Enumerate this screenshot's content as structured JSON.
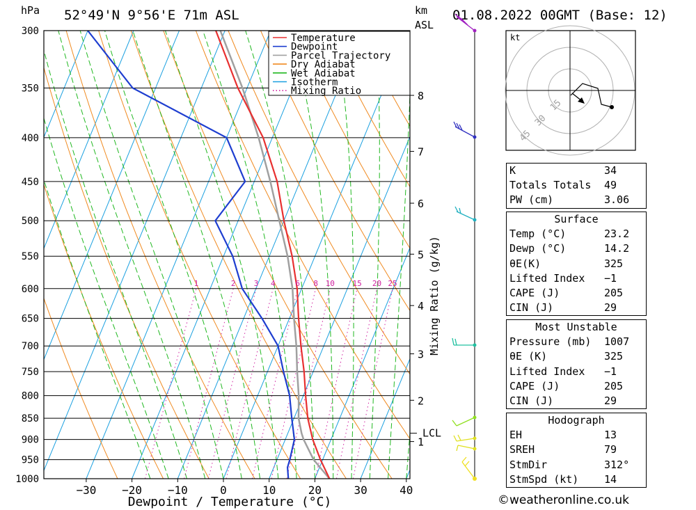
{
  "header": {
    "location": "52°49'N  9°56'E  71m  ASL",
    "datetime": "01.08.2022  00GMT  (Base: 12)",
    "hpa_label": "hPa",
    "km_label": "km",
    "asl_label": "ASL"
  },
  "chart_data": {
    "type": "line",
    "xlabel": "Dewpoint / Temperature (°C)",
    "ylabel": "",
    "x_ticks": [
      -30,
      -20,
      -10,
      0,
      10,
      20,
      30,
      40
    ],
    "x_tick_labels": [
      "−30",
      "−20",
      "−10",
      "0",
      "10",
      "20",
      "30",
      "40"
    ],
    "pressure_levels": [
      300,
      350,
      400,
      450,
      500,
      550,
      600,
      650,
      700,
      750,
      800,
      850,
      900,
      950,
      1000
    ],
    "km_ticks": [
      {
        "label": "8",
        "p": 357
      },
      {
        "label": "7",
        "p": 415
      },
      {
        "label": "6",
        "p": 477
      },
      {
        "label": "5",
        "p": 547
      },
      {
        "label": "4",
        "p": 628
      },
      {
        "label": "3",
        "p": 715
      },
      {
        "label": "2",
        "p": 810
      },
      {
        "label": "1",
        "p": 905
      }
    ],
    "lcl": {
      "label": "LCL",
      "p": 885
    },
    "mixing_ratio_label": "Mixing Ratio (g/kg)",
    "mixing_ratio_values": [
      "1",
      "2",
      "3",
      "4",
      "6",
      "8",
      "10",
      "15",
      "20",
      "25"
    ],
    "legend": [
      "Temperature",
      "Dewpoint",
      "Parcel Trajectory",
      "Dry Adiabat",
      "Wet Adiabat",
      "Isotherm",
      "Mixing Ratio"
    ],
    "series": [
      {
        "name": "Temperature",
        "color": "#e83030",
        "points": [
          [
            1000,
            23.2
          ],
          [
            950,
            19.5
          ],
          [
            900,
            16
          ],
          [
            850,
            13
          ],
          [
            800,
            10.5
          ],
          [
            750,
            8
          ],
          [
            700,
            5
          ],
          [
            650,
            2
          ],
          [
            600,
            -1
          ],
          [
            550,
            -5
          ],
          [
            500,
            -10
          ],
          [
            450,
            -15
          ],
          [
            400,
            -22
          ],
          [
            350,
            -32
          ],
          [
            300,
            -42
          ]
        ]
      },
      {
        "name": "Dewpoint",
        "color": "#1e3ed0",
        "points": [
          [
            1000,
            14.2
          ],
          [
            970,
            13
          ],
          [
            950,
            12.8
          ],
          [
            900,
            12
          ],
          [
            850,
            9.5
          ],
          [
            800,
            7
          ],
          [
            750,
            3.5
          ],
          [
            700,
            0
          ],
          [
            650,
            -6
          ],
          [
            600,
            -13
          ],
          [
            550,
            -18
          ],
          [
            500,
            -25
          ],
          [
            450,
            -22
          ],
          [
            400,
            -30
          ],
          [
            350,
            -55
          ],
          [
            300,
            -70
          ]
        ]
      },
      {
        "name": "Parcel Trajectory",
        "color": "#a0a0a0",
        "points": [
          [
            1000,
            23.2
          ],
          [
            950,
            18
          ],
          [
            900,
            14
          ],
          [
            885,
            13
          ],
          [
            850,
            11
          ],
          [
            800,
            9
          ],
          [
            750,
            6.5
          ],
          [
            700,
            4
          ],
          [
            650,
            1
          ],
          [
            600,
            -2
          ],
          [
            550,
            -6
          ],
          [
            500,
            -11
          ],
          [
            450,
            -16.5
          ],
          [
            400,
            -23
          ],
          [
            350,
            -31
          ],
          [
            300,
            -41
          ]
        ]
      }
    ]
  },
  "hodograph": {
    "unit": "kt",
    "rings": [
      "15",
      "30",
      "45"
    ]
  },
  "indices": {
    "k_label": "K",
    "k": "34",
    "tt_label": "Totals Totals",
    "tt": "49",
    "pw_label": "PW (cm)",
    "pw": "3.06"
  },
  "surface": {
    "title": "Surface",
    "temp_label": "Temp (°C)",
    "temp": "23.2",
    "dewp_label": "Dewp (°C)",
    "dewp": "14.2",
    "theta_label": "θE(K)",
    "theta": "325",
    "li_label": "Lifted Index",
    "li": "−1",
    "cape_label": "CAPE (J)",
    "cape": "205",
    "cin_label": "CIN (J)",
    "cin": "29"
  },
  "most_unstable": {
    "title": "Most Unstable",
    "pressure_label": "Pressure (mb)",
    "pressure": "1007",
    "theta_label": "θE (K)",
    "theta": "325",
    "li_label": "Lifted Index",
    "li": "−1",
    "cape_label": "CAPE (J)",
    "cape": "205",
    "cin_label": "CIN (J)",
    "cin": "29"
  },
  "hodograph_params": {
    "title": "Hodograph",
    "eh_label": "EH",
    "eh": "13",
    "sreh_label": "SREH",
    "sreh": "79",
    "stmdir_label": "StmDir",
    "stmdir": "312°",
    "stmspd_label": "StmSpd (kt)",
    "stmspd": "14"
  },
  "footer": {
    "copyright": "©weatheronline.co.uk"
  }
}
